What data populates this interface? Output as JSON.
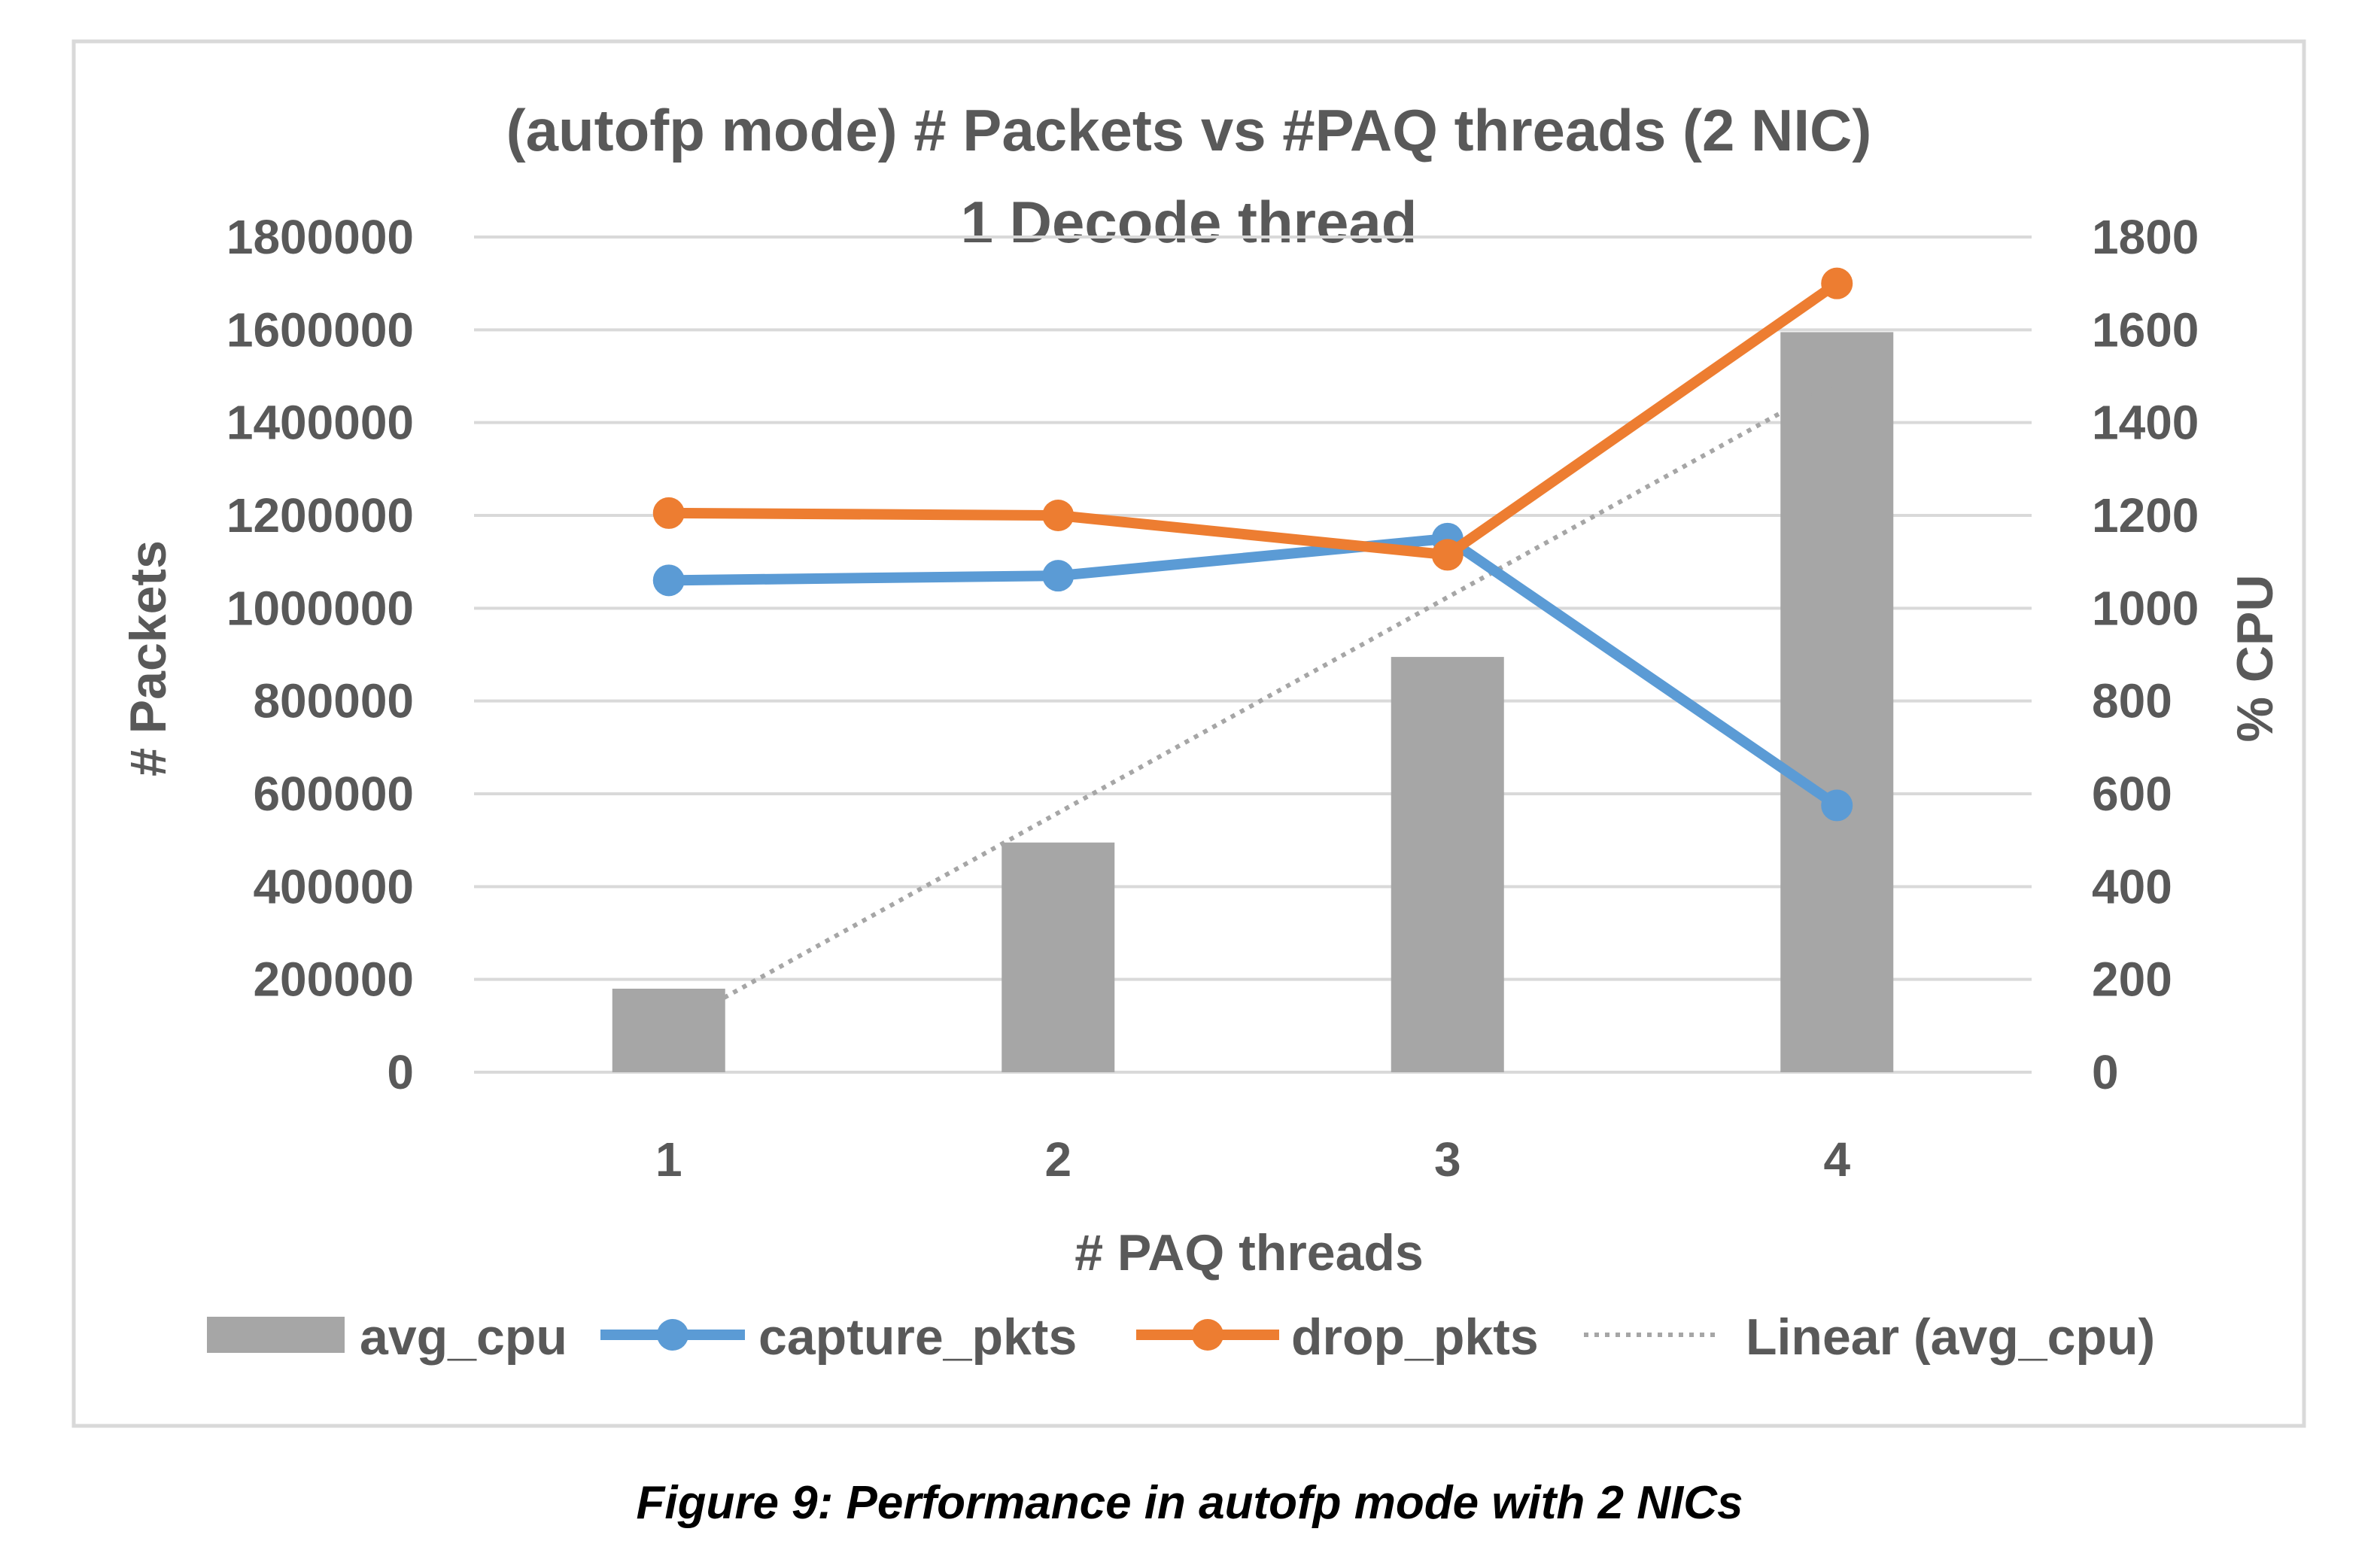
{
  "caption": "Figure 9:  Performance in autofp mode with 2 NICs",
  "colors": {
    "avg_cpu": "#a6a6a6",
    "capture_pkts": "#5b9bd5",
    "drop_pkts": "#ed7d31",
    "trendline": "#a6a6a6",
    "gridline": "#d9d9d9",
    "text": "#595959",
    "frame": "#d9d9d9"
  },
  "chart_data": {
    "type": "bar",
    "title": "(autofp mode) # Packets vs #PAQ threads  (2 NIC)",
    "subtitle": "1 Decode thread",
    "xlabel": "# PAQ threads",
    "ylabel": "# Packets",
    "y2label": "% CPU",
    "categories": [
      "1",
      "2",
      "3",
      "4"
    ],
    "ylim": [
      0,
      1800000
    ],
    "y2lim": [
      0,
      1800
    ],
    "yticks": [
      "0",
      "200000",
      "400000",
      "600000",
      "800000",
      "1000000",
      "1200000",
      "1400000",
      "1600000",
      "1800000"
    ],
    "y2ticks": [
      "0",
      "200",
      "400",
      "600",
      "800",
      "1000",
      "1200",
      "1400",
      "1600",
      "1800"
    ],
    "grid": true,
    "legend_position": "bottom",
    "series": [
      {
        "name": "avg_cpu",
        "type": "bar",
        "axis": "right",
        "values": [
          180,
          495,
          895,
          1595
        ]
      },
      {
        "name": "capture_pkts",
        "type": "line",
        "axis": "left",
        "values": [
          1060000,
          1070000,
          1150000,
          575000
        ]
      },
      {
        "name": "drop_pkts",
        "type": "line",
        "axis": "left",
        "values": [
          1205000,
          1200000,
          1115000,
          1700000
        ]
      },
      {
        "name": "Linear (avg_cpu)",
        "type": "trendline",
        "axis": "right",
        "of": "avg_cpu"
      }
    ]
  }
}
